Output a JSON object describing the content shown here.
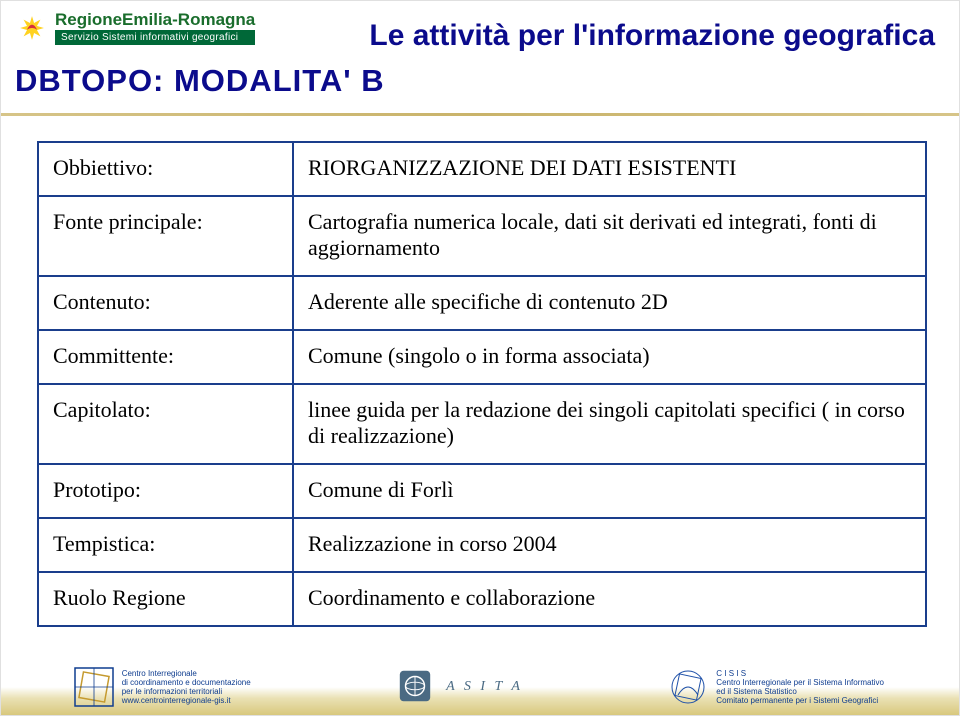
{
  "logo": {
    "line1": "RegioneEmilia-Romagna",
    "line2": "Servizio Sistemi informativi geografici",
    "green": "#1a6d2c",
    "green_dark": "#006838",
    "yellow": "#ffd21f",
    "red": "#d6303a"
  },
  "header": {
    "title": "Le attività per l'informazione geografica",
    "section": "DBTOPO: MODALITA' B",
    "color": "#0b0b8c"
  },
  "table": {
    "border_color": "#1a3e8c",
    "rows": [
      {
        "label": "Obbiettivo:",
        "value": "RIORGANIZZAZIONE DEI DATI ESISTENTI"
      },
      {
        "label": "Fonte principale:",
        "value": "Cartografia numerica locale, dati sit derivati ed integrati, fonti di aggiornamento"
      },
      {
        "label": "Contenuto:",
        "value": "Aderente alle specifiche di contenuto 2D"
      },
      {
        "label": "Committente:",
        "value": "Comune (singolo o in forma associata)"
      },
      {
        "label": "Capitolato:",
        "value": "linee guida per la redazione dei singoli capitolati specifici ( in corso di realizzazione)"
      },
      {
        "label": "Prototipo:",
        "value": "Comune di Forlì"
      },
      {
        "label": "Tempistica:",
        "value": "Realizzazione in corso 2004"
      },
      {
        "label": "Ruolo Regione",
        "value": "Coordinamento e collaborazione"
      }
    ]
  },
  "footer": {
    "band_colors": [
      "#ffffff",
      "#eae1b4",
      "#d8c87d"
    ],
    "logos": [
      {
        "name": "centro-interregionale",
        "text": "Centro Interregionale\n di coordinamento e documentazione\n per le informazioni territoriali\nwww.centrointerregionale-gis.it",
        "color": "#0f3d8f"
      },
      {
        "name": "asita",
        "text": "A S I T A",
        "color": "#45627a"
      },
      {
        "name": "cisis",
        "text": "C I S I S\nCentro Interregionale per il Sistema Informativo ed il Sistema Statistico\nComitato permanente per i Sistemi Geografici",
        "color": "#1e50a8"
      }
    ]
  }
}
